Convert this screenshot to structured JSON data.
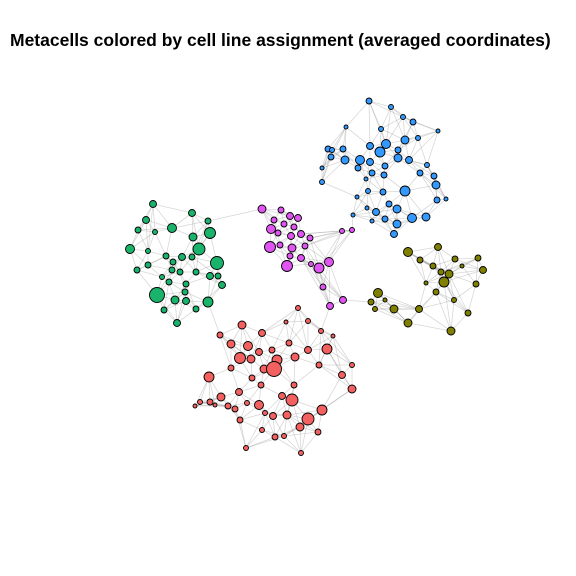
{
  "chart_data": {
    "type": "scatter",
    "title": "Metacells colored by cell line assignment (averaged coordinates)",
    "xlabel": "",
    "ylabel": "",
    "axes": "none",
    "grid": false,
    "legend": "none",
    "series": [
      {
        "color": "#3399ff",
        "points": [
          {
            "x": 369,
            "y": 101,
            "r": 3
          },
          {
            "x": 391,
            "y": 107,
            "r": 2.5
          },
          {
            "x": 403,
            "y": 117,
            "r": 2.5
          },
          {
            "x": 346,
            "y": 127,
            "r": 2
          },
          {
            "x": 381,
            "y": 129,
            "r": 2.5
          },
          {
            "x": 413,
            "y": 122,
            "r": 3
          },
          {
            "x": 438,
            "y": 131,
            "r": 2
          },
          {
            "x": 405,
            "y": 140,
            "r": 4
          },
          {
            "x": 386,
            "y": 144,
            "r": 4.5
          },
          {
            "x": 380,
            "y": 152,
            "r": 5
          },
          {
            "x": 370,
            "y": 146,
            "r": 3.5
          },
          {
            "x": 398,
            "y": 158,
            "r": 4
          },
          {
            "x": 409,
            "y": 160,
            "r": 3.5
          },
          {
            "x": 343,
            "y": 149,
            "r": 3
          },
          {
            "x": 328,
            "y": 149,
            "r": 3
          },
          {
            "x": 331,
            "y": 157,
            "r": 3
          },
          {
            "x": 345,
            "y": 160,
            "r": 4
          },
          {
            "x": 360,
            "y": 160,
            "r": 4.5
          },
          {
            "x": 370,
            "y": 162,
            "r": 3.5
          },
          {
            "x": 385,
            "y": 166,
            "r": 3
          },
          {
            "x": 358,
            "y": 168,
            "r": 3
          },
          {
            "x": 372,
            "y": 173,
            "r": 3
          },
          {
            "x": 384,
            "y": 175,
            "r": 3
          },
          {
            "x": 366,
            "y": 179,
            "r": 2
          },
          {
            "x": 322,
            "y": 168,
            "r": 2
          },
          {
            "x": 322,
            "y": 182,
            "r": 2.5
          },
          {
            "x": 332,
            "y": 150,
            "r": 2.5
          },
          {
            "x": 427,
            "y": 165,
            "r": 2.5
          },
          {
            "x": 434,
            "y": 176,
            "r": 3
          },
          {
            "x": 436,
            "y": 185,
            "r": 4
          },
          {
            "x": 420,
            "y": 173,
            "r": 3
          },
          {
            "x": 405,
            "y": 191,
            "r": 5
          },
          {
            "x": 383,
            "y": 192,
            "r": 3
          },
          {
            "x": 368,
            "y": 191,
            "r": 2.5
          },
          {
            "x": 357,
            "y": 197,
            "r": 2
          },
          {
            "x": 389,
            "y": 204,
            "r": 3
          },
          {
            "x": 397,
            "y": 209,
            "r": 4
          },
          {
            "x": 367,
            "y": 208,
            "r": 2
          },
          {
            "x": 376,
            "y": 212,
            "r": 3.5
          },
          {
            "x": 372,
            "y": 221,
            "r": 2
          },
          {
            "x": 353,
            "y": 215,
            "r": 2
          },
          {
            "x": 385,
            "y": 219,
            "r": 3
          },
          {
            "x": 397,
            "y": 224,
            "r": 4
          },
          {
            "x": 412,
            "y": 218,
            "r": 4.5
          },
          {
            "x": 426,
            "y": 217,
            "r": 4
          },
          {
            "x": 437,
            "y": 200,
            "r": 3
          },
          {
            "x": 446,
            "y": 199,
            "r": 2
          },
          {
            "x": 394,
            "y": 234,
            "r": 3.5
          },
          {
            "x": 418,
            "y": 138,
            "r": 2.5
          },
          {
            "x": 398,
            "y": 150,
            "r": 3
          }
        ]
      },
      {
        "color": "#808000",
        "points": [
          {
            "x": 408,
            "y": 252,
            "r": 4.5
          },
          {
            "x": 438,
            "y": 247,
            "r": 3.5
          },
          {
            "x": 420,
            "y": 260,
            "r": 3
          },
          {
            "x": 455,
            "y": 259,
            "r": 3
          },
          {
            "x": 478,
            "y": 258,
            "r": 3
          },
          {
            "x": 433,
            "y": 266,
            "r": 3
          },
          {
            "x": 483,
            "y": 270,
            "r": 3.5
          },
          {
            "x": 449,
            "y": 274,
            "r": 4
          },
          {
            "x": 441,
            "y": 272,
            "r": 3
          },
          {
            "x": 476,
            "y": 284,
            "r": 3
          },
          {
            "x": 444,
            "y": 282,
            "r": 5
          },
          {
            "x": 436,
            "y": 292,
            "r": 3
          },
          {
            "x": 378,
            "y": 293,
            "r": 4.5
          },
          {
            "x": 371,
            "y": 302,
            "r": 3
          },
          {
            "x": 394,
            "y": 309,
            "r": 4
          },
          {
            "x": 419,
            "y": 309,
            "r": 3.5
          },
          {
            "x": 454,
            "y": 300,
            "r": 2.5
          },
          {
            "x": 468,
            "y": 313,
            "r": 3
          },
          {
            "x": 385,
            "y": 300,
            "r": 2
          },
          {
            "x": 408,
            "y": 323,
            "r": 4
          },
          {
            "x": 451,
            "y": 331,
            "r": 4
          },
          {
            "x": 375,
            "y": 309,
            "r": 2.5
          },
          {
            "x": 426,
            "y": 283,
            "r": 2
          },
          {
            "x": 462,
            "y": 266,
            "r": 2
          }
        ]
      },
      {
        "color": "#e055f2",
        "points": [
          {
            "x": 262,
            "y": 209,
            "r": 4
          },
          {
            "x": 281,
            "y": 210,
            "r": 3
          },
          {
            "x": 290,
            "y": 216,
            "r": 3.5
          },
          {
            "x": 298,
            "y": 218,
            "r": 3.5
          },
          {
            "x": 274,
            "y": 220,
            "r": 3
          },
          {
            "x": 271,
            "y": 229,
            "r": 4.5
          },
          {
            "x": 284,
            "y": 224,
            "r": 3
          },
          {
            "x": 294,
            "y": 227,
            "r": 3
          },
          {
            "x": 291,
            "y": 236,
            "r": 3.5
          },
          {
            "x": 301,
            "y": 234,
            "r": 3.5
          },
          {
            "x": 278,
            "y": 233,
            "r": 3
          },
          {
            "x": 310,
            "y": 238,
            "r": 3
          },
          {
            "x": 342,
            "y": 231,
            "r": 2.5
          },
          {
            "x": 352,
            "y": 230,
            "r": 2.5
          },
          {
            "x": 270,
            "y": 247,
            "r": 5.5
          },
          {
            "x": 292,
            "y": 248,
            "r": 4
          },
          {
            "x": 290,
            "y": 256,
            "r": 3
          },
          {
            "x": 301,
            "y": 258,
            "r": 3.5
          },
          {
            "x": 329,
            "y": 262,
            "r": 4.5
          },
          {
            "x": 287,
            "y": 266,
            "r": 5.5
          },
          {
            "x": 319,
            "y": 268,
            "r": 5
          },
          {
            "x": 311,
            "y": 264,
            "r": 2.5
          },
          {
            "x": 323,
            "y": 287,
            "r": 3
          },
          {
            "x": 343,
            "y": 300,
            "r": 3.5
          },
          {
            "x": 330,
            "y": 306,
            "r": 3.5
          },
          {
            "x": 280,
            "y": 245,
            "r": 3
          },
          {
            "x": 305,
            "y": 246,
            "r": 3
          }
        ]
      },
      {
        "color": "#1ab36b",
        "points": [
          {
            "x": 153,
            "y": 204,
            "r": 3.5
          },
          {
            "x": 192,
            "y": 213,
            "r": 3.5
          },
          {
            "x": 146,
            "y": 220,
            "r": 3.5
          },
          {
            "x": 172,
            "y": 228,
            "r": 4.5
          },
          {
            "x": 208,
            "y": 221,
            "r": 3
          },
          {
            "x": 138,
            "y": 230,
            "r": 3
          },
          {
            "x": 155,
            "y": 232,
            "r": 2.5
          },
          {
            "x": 193,
            "y": 237,
            "r": 4
          },
          {
            "x": 210,
            "y": 233,
            "r": 5.5
          },
          {
            "x": 199,
            "y": 249,
            "r": 6
          },
          {
            "x": 130,
            "y": 249,
            "r": 4.5
          },
          {
            "x": 148,
            "y": 251,
            "r": 2.5
          },
          {
            "x": 166,
            "y": 256,
            "r": 3
          },
          {
            "x": 182,
            "y": 257,
            "r": 3.5
          },
          {
            "x": 192,
            "y": 257,
            "r": 3
          },
          {
            "x": 173,
            "y": 262,
            "r": 3
          },
          {
            "x": 148,
            "y": 265,
            "r": 3
          },
          {
            "x": 217,
            "y": 263,
            "r": 6.5
          },
          {
            "x": 137,
            "y": 270,
            "r": 3
          },
          {
            "x": 172,
            "y": 270,
            "r": 3
          },
          {
            "x": 180,
            "y": 272,
            "r": 3
          },
          {
            "x": 196,
            "y": 272,
            "r": 3
          },
          {
            "x": 210,
            "y": 276,
            "r": 3.5
          },
          {
            "x": 218,
            "y": 276,
            "r": 3
          },
          {
            "x": 169,
            "y": 282,
            "r": 3
          },
          {
            "x": 186,
            "y": 284,
            "r": 3
          },
          {
            "x": 222,
            "y": 285,
            "r": 3.5
          },
          {
            "x": 157,
            "y": 295,
            "r": 7.5
          },
          {
            "x": 175,
            "y": 300,
            "r": 4
          },
          {
            "x": 186,
            "y": 301,
            "r": 3.5
          },
          {
            "x": 208,
            "y": 302,
            "r": 5
          },
          {
            "x": 164,
            "y": 310,
            "r": 3
          },
          {
            "x": 196,
            "y": 309,
            "r": 3
          },
          {
            "x": 177,
            "y": 323,
            "r": 3.5
          },
          {
            "x": 185,
            "y": 292,
            "r": 3
          },
          {
            "x": 162,
            "y": 277,
            "r": 2.5
          }
        ]
      },
      {
        "color": "#f26060",
        "points": [
          {
            "x": 298,
            "y": 308,
            "r": 2.5
          },
          {
            "x": 308,
            "y": 321,
            "r": 2.5
          },
          {
            "x": 242,
            "y": 325,
            "r": 4
          },
          {
            "x": 321,
            "y": 331,
            "r": 2.5
          },
          {
            "x": 220,
            "y": 335,
            "r": 3
          },
          {
            "x": 262,
            "y": 333,
            "r": 3.5
          },
          {
            "x": 231,
            "y": 344,
            "r": 4
          },
          {
            "x": 248,
            "y": 346,
            "r": 4.5
          },
          {
            "x": 259,
            "y": 352,
            "r": 3.5
          },
          {
            "x": 272,
            "y": 350,
            "r": 3
          },
          {
            "x": 327,
            "y": 349,
            "r": 5
          },
          {
            "x": 240,
            "y": 358,
            "r": 5.5
          },
          {
            "x": 251,
            "y": 359,
            "r": 4
          },
          {
            "x": 277,
            "y": 360,
            "r": 5
          },
          {
            "x": 295,
            "y": 357,
            "r": 4
          },
          {
            "x": 289,
            "y": 343,
            "r": 3
          },
          {
            "x": 308,
            "y": 350,
            "r": 3.5
          },
          {
            "x": 319,
            "y": 365,
            "r": 3
          },
          {
            "x": 352,
            "y": 365,
            "r": 2.5
          },
          {
            "x": 231,
            "y": 368,
            "r": 3
          },
          {
            "x": 264,
            "y": 369,
            "r": 4
          },
          {
            "x": 274,
            "y": 369,
            "r": 7.5
          },
          {
            "x": 209,
            "y": 377,
            "r": 5
          },
          {
            "x": 342,
            "y": 375,
            "r": 3.5
          },
          {
            "x": 252,
            "y": 378,
            "r": 3
          },
          {
            "x": 261,
            "y": 385,
            "r": 3
          },
          {
            "x": 294,
            "y": 385,
            "r": 3
          },
          {
            "x": 239,
            "y": 392,
            "r": 3.5
          },
          {
            "x": 352,
            "y": 389,
            "r": 4
          },
          {
            "x": 282,
            "y": 396,
            "r": 3.5
          },
          {
            "x": 221,
            "y": 397,
            "r": 4
          },
          {
            "x": 292,
            "y": 400,
            "r": 6
          },
          {
            "x": 210,
            "y": 402,
            "r": 3
          },
          {
            "x": 200,
            "y": 402,
            "r": 2.5
          },
          {
            "x": 247,
            "y": 403,
            "r": 2.5
          },
          {
            "x": 228,
            "y": 406,
            "r": 3
          },
          {
            "x": 259,
            "y": 405,
            "r": 4.5
          },
          {
            "x": 265,
            "y": 413,
            "r": 2.5
          },
          {
            "x": 195,
            "y": 406,
            "r": 2
          },
          {
            "x": 215,
            "y": 405,
            "r": 2
          },
          {
            "x": 235,
            "y": 409,
            "r": 3
          },
          {
            "x": 322,
            "y": 410,
            "r": 5
          },
          {
            "x": 273,
            "y": 416,
            "r": 3.5
          },
          {
            "x": 287,
            "y": 415,
            "r": 4
          },
          {
            "x": 308,
            "y": 419,
            "r": 6
          },
          {
            "x": 240,
            "y": 420,
            "r": 3
          },
          {
            "x": 300,
            "y": 427,
            "r": 4
          },
          {
            "x": 318,
            "y": 432,
            "r": 3
          },
          {
            "x": 275,
            "y": 437,
            "r": 3
          },
          {
            "x": 284,
            "y": 436,
            "r": 2.5
          },
          {
            "x": 301,
            "y": 453,
            "r": 2.5
          },
          {
            "x": 246,
            "y": 448,
            "r": 2.5
          },
          {
            "x": 262,
            "y": 430,
            "r": 2.5
          },
          {
            "x": 286,
            "y": 322,
            "r": 2
          },
          {
            "x": 333,
            "y": 336,
            "r": 2
          }
        ]
      }
    ]
  }
}
